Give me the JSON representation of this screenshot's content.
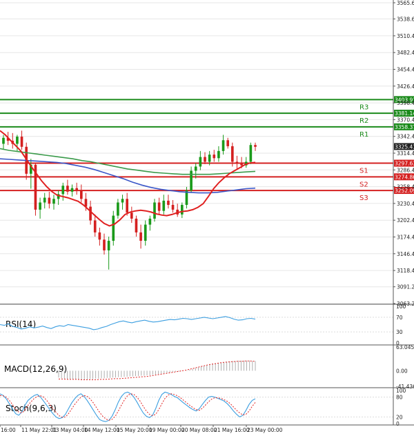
{
  "chart_data": {
    "type": "candlestick",
    "main": {
      "y_ticks": [
        "3565.60",
        "3538.60",
        "3510.40",
        "3482.40",
        "3454.40",
        "3426.40",
        "3398.40",
        "3370.40",
        "3342.40",
        "3314.40",
        "3286.40",
        "3258.40",
        "3230.40",
        "3202.40",
        "3174.40",
        "3146.40",
        "3118.40",
        "3091.20",
        "3063.20"
      ],
      "ylim": [
        3063.2,
        3565.6
      ],
      "levels": [
        {
          "name": "R3",
          "value": 3403.91,
          "label": "3403.91",
          "color": "#1a8a1a"
        },
        {
          "name": "R2",
          "value": 3381.14,
          "label": "3381.14",
          "color": "#1a8a1a"
        },
        {
          "name": "R1",
          "value": 3358.37,
          "label": "3358.37",
          "color": "#1a8a1a"
        },
        {
          "name": "S1",
          "value": 3297.63,
          "label": "3297.63",
          "color": "#d42020"
        },
        {
          "name": "S2",
          "value": 3274.86,
          "label": "3274.86",
          "color": "#d42020"
        },
        {
          "name": "S3",
          "value": 3252.09,
          "label": "3252.09",
          "color": "#d42020"
        }
      ],
      "current_price": "3325.41",
      "candles": [
        [
          3330,
          3345,
          3320,
          3340
        ],
        [
          3340,
          3350,
          3328,
          3335
        ],
        [
          3335,
          3348,
          3322,
          3330
        ],
        [
          3330,
          3345,
          3318,
          3342
        ],
        [
          3342,
          3352,
          3320,
          3325
        ],
        [
          3325,
          3332,
          3270,
          3280
        ],
        [
          3280,
          3305,
          3255,
          3295
        ],
        [
          3295,
          3298,
          3210,
          3220
        ],
        [
          3220,
          3240,
          3205,
          3232
        ],
        [
          3232,
          3248,
          3222,
          3240
        ],
        [
          3240,
          3250,
          3222,
          3230
        ],
        [
          3230,
          3245,
          3220,
          3238
        ],
        [
          3238,
          3252,
          3228,
          3246
        ],
        [
          3246,
          3265,
          3235,
          3260
        ],
        [
          3260,
          3270,
          3245,
          3250
        ],
        [
          3250,
          3262,
          3242,
          3256
        ],
        [
          3256,
          3265,
          3245,
          3252
        ],
        [
          3252,
          3262,
          3232,
          3238
        ],
        [
          3238,
          3248,
          3218,
          3225
        ],
        [
          3225,
          3235,
          3195,
          3202
        ],
        [
          3202,
          3212,
          3175,
          3182
        ],
        [
          3182,
          3190,
          3160,
          3170
        ],
        [
          3170,
          3180,
          3145,
          3152
        ],
        [
          3152,
          3175,
          3120,
          3168
        ],
        [
          3168,
          3218,
          3160,
          3210
        ],
        [
          3210,
          3238,
          3205,
          3232
        ],
        [
          3232,
          3245,
          3220,
          3238
        ],
        [
          3238,
          3248,
          3210,
          3215
        ],
        [
          3215,
          3225,
          3198,
          3205
        ],
        [
          3205,
          3210,
          3175,
          3182
        ],
        [
          3182,
          3195,
          3155,
          3168
        ],
        [
          3168,
          3202,
          3160,
          3195
        ],
        [
          3195,
          3210,
          3185,
          3205
        ],
        [
          3205,
          3238,
          3200,
          3232
        ],
        [
          3232,
          3240,
          3212,
          3218
        ],
        [
          3218,
          3245,
          3212,
          3235
        ],
        [
          3235,
          3245,
          3222,
          3228
        ],
        [
          3228,
          3236,
          3215,
          3220
        ],
        [
          3220,
          3230,
          3208,
          3212
        ],
        [
          3212,
          3232,
          3206,
          3228
        ],
        [
          3228,
          3258,
          3222,
          3252
        ],
        [
          3252,
          3292,
          3248,
          3285
        ],
        [
          3285,
          3298,
          3272,
          3292
        ],
        [
          3292,
          3318,
          3286,
          3308
        ],
        [
          3308,
          3316,
          3296,
          3300
        ],
        [
          3300,
          3318,
          3294,
          3312
        ],
        [
          3312,
          3320,
          3300,
          3306
        ],
        [
          3306,
          3326,
          3300,
          3318
        ],
        [
          3318,
          3345,
          3312,
          3336
        ],
        [
          3336,
          3340,
          3322,
          3326
        ],
        [
          3326,
          3332,
          3292,
          3300
        ],
        [
          3300,
          3310,
          3288,
          3298
        ],
        [
          3298,
          3308,
          3289,
          3294
        ],
        [
          3294,
          3308,
          3290,
          3300
        ],
        [
          3300,
          3332,
          3296,
          3328
        ],
        [
          3328,
          3332,
          3318,
          3325
        ]
      ],
      "ma_red": [
        3352,
        3345,
        3336,
        3327,
        3318,
        3305,
        3292,
        3280,
        3268,
        3258,
        3250,
        3244,
        3242,
        3240,
        3237,
        3234,
        3228,
        3220,
        3212,
        3204,
        3197,
        3193,
        3196,
        3203,
        3212,
        3216,
        3218,
        3219,
        3218,
        3216,
        3213,
        3211,
        3210,
        3212,
        3215,
        3217,
        3218,
        3220,
        3224,
        3230,
        3242,
        3255,
        3265,
        3273,
        3280,
        3285,
        3290,
        3295,
        3298,
        3299
      ],
      "ma_green": [
        3322,
        3319,
        3317,
        3315,
        3313,
        3311,
        3309,
        3307,
        3305,
        3302,
        3300,
        3297,
        3294,
        3291,
        3288,
        3286,
        3284,
        3282,
        3281,
        3280,
        3279,
        3279,
        3279,
        3279,
        3280,
        3281,
        3282,
        3283,
        3284
      ],
      "ma_blue": [
        3305,
        3304,
        3303,
        3302,
        3301,
        3300,
        3299,
        3297,
        3294,
        3291,
        3287,
        3282,
        3277,
        3272,
        3266,
        3261,
        3257,
        3254,
        3252,
        3250,
        3249,
        3248,
        3248,
        3249,
        3251,
        3253,
        3255,
        3256
      ]
    },
    "x_labels": [
      "16:00",
      "11 May 22:01",
      "13 May 04:00",
      "14 May 12:00",
      "15 May 20:00",
      "19 May 00:00",
      "20 May 08:00",
      "21 May 16:00",
      "23 May 00:00"
    ],
    "rsi": {
      "label": "RSI(14)",
      "ticks": [
        "100",
        "70",
        "30",
        "0"
      ],
      "values": [
        50,
        48,
        52,
        45,
        42,
        38,
        40,
        44,
        41,
        43,
        46,
        42,
        39,
        44,
        47,
        45,
        50,
        48,
        46,
        44,
        42,
        40,
        36,
        38,
        42,
        45,
        50,
        54,
        58,
        60,
        57,
        55,
        58,
        60,
        62,
        59,
        57,
        58,
        60,
        62,
        64,
        63,
        65,
        67,
        66,
        64,
        66,
        68,
        70,
        68,
        66,
        68,
        70,
        72,
        69,
        65,
        62,
        63,
        66,
        67,
        65
      ]
    },
    "macd": {
      "label": "MACD(12,26,9)",
      "ticks": [
        "63.045",
        "0.00",
        "-41.436"
      ],
      "ylim": [
        -41.436,
        63.045
      ],
      "hist": [
        -18,
        -20,
        -21,
        -22,
        -22,
        -23,
        -23,
        -24,
        -24,
        -23,
        -23,
        -22,
        -22,
        -21,
        -21,
        -20,
        -20,
        -19,
        -19,
        -18,
        -18,
        -17,
        -17,
        -16,
        -16,
        -15,
        -15,
        -14,
        -14,
        -13,
        -13,
        -12,
        -12,
        -11,
        -10,
        -9,
        -8,
        -7,
        -6,
        -5,
        -4,
        -3,
        -2,
        -1,
        0,
        1,
        3,
        5,
        7,
        9,
        11,
        13,
        15,
        17,
        19,
        20,
        21,
        22,
        23,
        24,
        25,
        26,
        26,
        27,
        27,
        27,
        27,
        27,
        26,
        26
      ],
      "signal": [
        -22,
        -22,
        -23,
        -23,
        -23,
        -24,
        -24,
        -24,
        -24,
        -23,
        -23,
        -22,
        -21,
        -21,
        -20,
        -19,
        -18,
        -17,
        -16,
        -15,
        -13,
        -11,
        -9,
        -7,
        -5,
        -3,
        -1,
        1,
        4,
        7,
        10,
        13,
        16,
        18,
        20,
        22,
        23,
        24,
        25,
        25,
        26,
        26,
        25
      ]
    },
    "stoch": {
      "label": "Stoch(9,6,3)",
      "ticks": [
        "100",
        "80",
        "20",
        "0"
      ],
      "k": [
        90,
        85,
        75,
        60,
        45,
        30,
        25,
        35,
        55,
        70,
        78,
        85,
        88,
        80,
        68,
        55,
        42,
        30,
        20,
        15,
        18,
        28,
        45,
        62,
        75,
        85,
        90,
        82,
        70,
        55,
        40,
        25,
        12,
        8,
        6,
        10,
        22,
        42,
        65,
        82,
        92,
        95,
        90,
        80,
        65,
        48,
        32,
        22,
        18,
        25,
        45,
        70,
        88,
        95,
        92,
        88,
        82,
        78,
        70,
        62,
        55,
        48,
        42,
        38,
        45,
        58,
        70,
        80,
        82,
        80,
        76,
        72,
        68,
        60,
        50,
        38,
        28,
        20,
        25,
        40,
        58,
        70,
        75
      ],
      "d": [
        85,
        84,
        80,
        70,
        58,
        45,
        35,
        32,
        40,
        55,
        66,
        76,
        82,
        84,
        80,
        70,
        58,
        45,
        34,
        24,
        19,
        20,
        30,
        44,
        58,
        70,
        80,
        85,
        82,
        74,
        62,
        48,
        34,
        22,
        14,
        10,
        13,
        22,
        38,
        56,
        72,
        85,
        90,
        88,
        80,
        68,
        52,
        38,
        28,
        24,
        28,
        42,
        60,
        76,
        86,
        90,
        88,
        84,
        78,
        70,
        62,
        55,
        48,
        42,
        40,
        46,
        56,
        66,
        74,
        78,
        78,
        76,
        72,
        67,
        60,
        50,
        40,
        32,
        26,
        28,
        38,
        52,
        64
      ]
    }
  }
}
